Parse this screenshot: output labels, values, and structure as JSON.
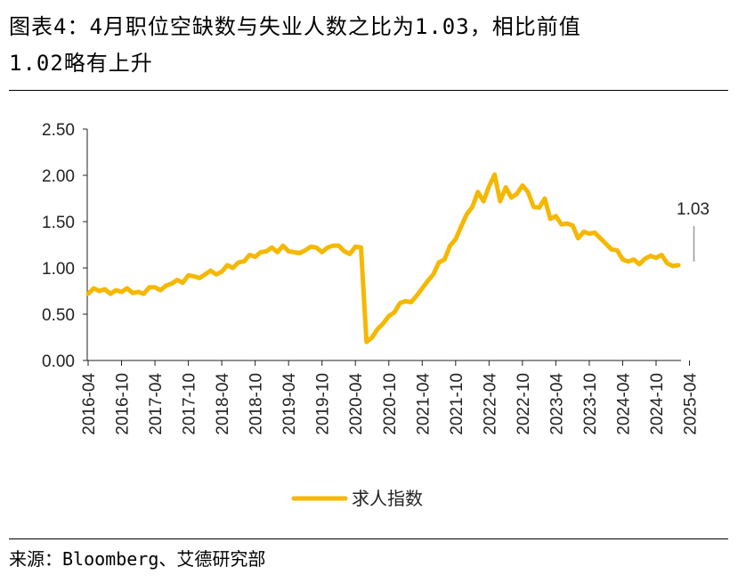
{
  "header": {
    "title_line1": "图表4：4月职位空缺数与失业人数之比为1.03，相比前值",
    "title_line2": "1.02略有上升"
  },
  "footer": {
    "source": "来源：Bloomberg、艾德研究部"
  },
  "chart_data": {
    "type": "line",
    "title": "",
    "xlabel": "",
    "ylabel": "",
    "ylim": [
      0,
      2.5
    ],
    "y_ticks": [
      "0.00",
      "0.50",
      "1.00",
      "1.50",
      "2.00",
      "2.50"
    ],
    "x_tick_labels": [
      "2016-04",
      "2016-10",
      "2017-04",
      "2017-10",
      "2018-04",
      "2018-10",
      "2019-04",
      "2019-10",
      "2020-04",
      "2020-10",
      "2021-04",
      "2021-10",
      "2022-04",
      "2022-10",
      "2023-04",
      "2023-10",
      "2024-04",
      "2024-10",
      "2025-04"
    ],
    "grid": false,
    "legend_position": "bottom-center",
    "series": [
      {
        "name": "求人指数",
        "color": "#F5B800",
        "start": "2016-04",
        "values": [
          0.72,
          0.78,
          0.75,
          0.77,
          0.72,
          0.76,
          0.74,
          0.78,
          0.73,
          0.74,
          0.72,
          0.79,
          0.79,
          0.76,
          0.81,
          0.83,
          0.87,
          0.84,
          0.92,
          0.91,
          0.89,
          0.93,
          0.97,
          0.93,
          0.96,
          1.03,
          1.0,
          1.06,
          1.07,
          1.14,
          1.12,
          1.17,
          1.18,
          1.22,
          1.17,
          1.24,
          1.18,
          1.17,
          1.16,
          1.19,
          1.23,
          1.22,
          1.17,
          1.22,
          1.24,
          1.24,
          1.18,
          1.15,
          1.23,
          1.22,
          0.2,
          0.25,
          0.34,
          0.4,
          0.48,
          0.52,
          0.62,
          0.64,
          0.63,
          0.7,
          0.78,
          0.86,
          0.93,
          1.06,
          1.09,
          1.24,
          1.31,
          1.45,
          1.58,
          1.66,
          1.82,
          1.72,
          1.88,
          2.01,
          1.72,
          1.87,
          1.76,
          1.8,
          1.89,
          1.82,
          1.66,
          1.65,
          1.75,
          1.53,
          1.56,
          1.47,
          1.48,
          1.46,
          1.32,
          1.39,
          1.37,
          1.38,
          1.32,
          1.26,
          1.2,
          1.19,
          1.09,
          1.07,
          1.09,
          1.04,
          1.1,
          1.13,
          1.11,
          1.14,
          1.05,
          1.02,
          1.03
        ]
      }
    ],
    "annotations": [
      {
        "text": "1.03",
        "at": "2025-04",
        "value": 1.03
      }
    ]
  }
}
